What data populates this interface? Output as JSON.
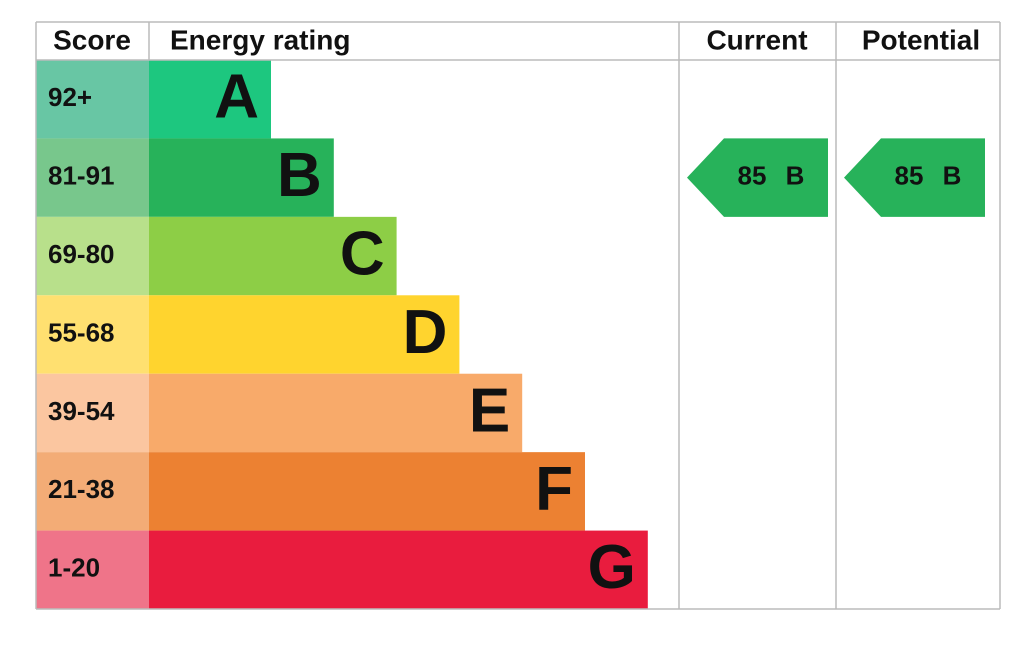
{
  "header": {
    "score": "Score",
    "rating": "Energy rating",
    "current": "Current",
    "potential": "Potential"
  },
  "bands": [
    {
      "score": "92+",
      "letter": "A",
      "color": "#1dc77f",
      "light": "#68c6a4"
    },
    {
      "score": "81-91",
      "letter": "B",
      "color": "#27b25a",
      "light": "#78c78c"
    },
    {
      "score": "69-80",
      "letter": "C",
      "color": "#8dce46",
      "light": "#b8e08b"
    },
    {
      "score": "55-68",
      "letter": "D",
      "color": "#ffd42e",
      "light": "#ffe070"
    },
    {
      "score": "39-54",
      "letter": "E",
      "color": "#f8aa6a",
      "light": "#fbc6a0"
    },
    {
      "score": "21-38",
      "letter": "F",
      "color": "#ec8132",
      "light": "#f3ac76"
    },
    {
      "score": "1-20",
      "letter": "G",
      "color": "#e91c3e",
      "light": "#ef7489"
    }
  ],
  "current": {
    "score": 85,
    "band": "B"
  },
  "potential": {
    "score": 85,
    "band": "B"
  }
}
